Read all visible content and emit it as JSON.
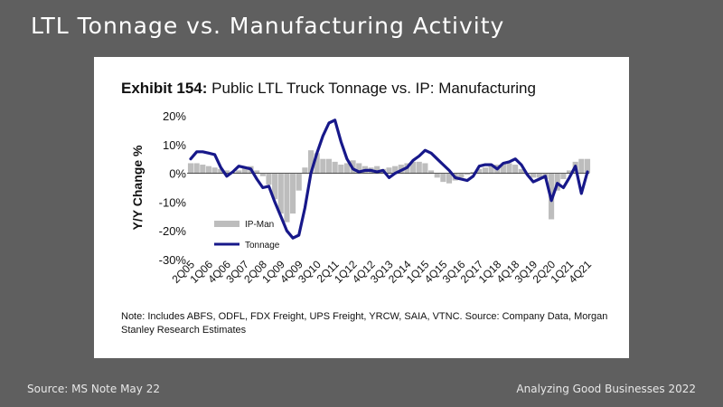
{
  "slide": {
    "title": "LTL Tonnage vs. Manufacturing Activity",
    "source": "Source: MS Note May 22",
    "footer_right": "Analyzing Good Businesses 2022"
  },
  "exhibit": {
    "label": "Exhibit 154:",
    "title": "Public LTL Truck Tonnage vs. IP: Manufacturing",
    "note": "Note: Includes ABFS, ODFL, FDX Freight, UPS Freight, YRCW, SAIA, VTNC. Source: Company Data, Morgan Stanley Research Estimates"
  },
  "chart_data": {
    "type": "line",
    "ylabel": "Y/Y Change %",
    "ylim": [
      -30,
      20
    ],
    "yticks": [
      "20%",
      "10%",
      "0%",
      "-10%",
      "-20%",
      "-30%"
    ],
    "x_tick_labels": [
      "2Q05",
      "1Q06",
      "4Q06",
      "3Q07",
      "2Q08",
      "1Q09",
      "4Q09",
      "3Q10",
      "2Q11",
      "1Q12",
      "4Q12",
      "3Q13",
      "2Q14",
      "1Q15",
      "4Q15",
      "3Q16",
      "2Q17",
      "1Q18",
      "4Q18",
      "3Q19",
      "2Q20",
      "1Q21",
      "4Q21"
    ],
    "x": [
      "2Q05",
      "3Q05",
      "4Q05",
      "1Q06",
      "2Q06",
      "3Q06",
      "4Q06",
      "1Q07",
      "2Q07",
      "3Q07",
      "4Q07",
      "1Q08",
      "2Q08",
      "3Q08",
      "4Q08",
      "1Q09",
      "2Q09",
      "3Q09",
      "4Q09",
      "1Q10",
      "2Q10",
      "3Q10",
      "4Q10",
      "1Q11",
      "2Q11",
      "3Q11",
      "4Q11",
      "1Q12",
      "2Q12",
      "3Q12",
      "4Q12",
      "1Q13",
      "2Q13",
      "3Q13",
      "4Q13",
      "1Q14",
      "2Q14",
      "3Q14",
      "4Q14",
      "1Q15",
      "2Q15",
      "3Q15",
      "4Q15",
      "1Q16",
      "2Q16",
      "3Q16",
      "4Q16",
      "1Q17",
      "2Q17",
      "3Q17",
      "4Q17",
      "1Q18",
      "2Q18",
      "3Q18",
      "4Q18",
      "1Q19",
      "2Q19",
      "3Q19",
      "4Q19",
      "1Q20",
      "2Q20",
      "3Q20",
      "4Q20",
      "1Q21",
      "2Q21",
      "3Q21",
      "4Q21"
    ],
    "series": [
      {
        "name": "IP-Man",
        "style": "bar",
        "color": "#bdbdbd",
        "values": [
          3.5,
          3.5,
          3,
          2.5,
          2,
          1.5,
          1,
          0.5,
          1,
          2,
          2.5,
          1,
          -1,
          -4,
          -9,
          -14,
          -17,
          -14,
          -6,
          2,
          8,
          7,
          5,
          5,
          4,
          3,
          3.5,
          4.5,
          3.5,
          2.5,
          2,
          2.5,
          1.5,
          2,
          2.5,
          3,
          3.5,
          4,
          4,
          3.5,
          1,
          -1.5,
          -3,
          -3.5,
          -2.5,
          -1.5,
          -0.5,
          0.5,
          1.5,
          2,
          2.5,
          3,
          3.5,
          3.5,
          3,
          1.5,
          -0.5,
          -1.5,
          -1.5,
          -2,
          -16,
          -6,
          -2,
          1,
          4,
          5,
          5
        ]
      },
      {
        "name": "Tonnage",
        "style": "line",
        "color": "#17188a",
        "values": [
          5,
          7.5,
          7.5,
          7,
          6.5,
          2,
          -1,
          0.5,
          2.5,
          2,
          1.5,
          -2,
          -5,
          -4.5,
          -10,
          -15,
          -20,
          -22.5,
          -21.5,
          -12,
          0,
          7,
          13,
          17.5,
          18.5,
          11,
          5,
          1.5,
          0.5,
          1,
          1,
          0.5,
          1,
          -1.5,
          0,
          1,
          2,
          4.5,
          6,
          8,
          7,
          5,
          3,
          1,
          -1.5,
          -2,
          -2.5,
          -1,
          2.5,
          3,
          3,
          1.5,
          3.5,
          4,
          5,
          3,
          -0.5,
          -3,
          -2,
          -1,
          -9.5,
          -3.5,
          -5,
          -1.5,
          2.5,
          -7,
          0.5
        ]
      }
    ],
    "legend_placement": "lower-left"
  }
}
